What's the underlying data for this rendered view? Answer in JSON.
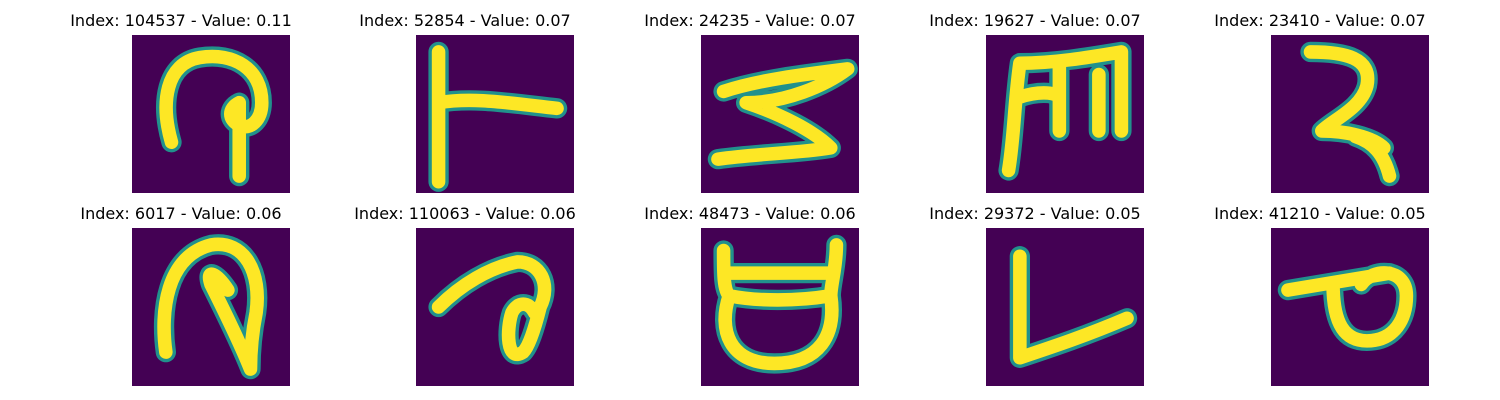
{
  "figure": {
    "background_color": "#440154",
    "stroke_color": "#fde725",
    "edge_color": "#21918c",
    "panels": [
      {
        "title": "Index: 104537 - Value: 0.11",
        "index": 104537,
        "value": 0.11
      },
      {
        "title": "Index: 52854 - Value: 0.07",
        "index": 52854,
        "value": 0.07
      },
      {
        "title": "Index: 24235 - Value: 0.07",
        "index": 24235,
        "value": 0.07
      },
      {
        "title": "Index: 19627 - Value: 0.07",
        "index": 19627,
        "value": 0.07
      },
      {
        "title": "Index: 23410 - Value: 0.07",
        "index": 23410,
        "value": 0.07
      },
      {
        "title": "Index: 6017 - Value: 0.06",
        "index": 6017,
        "value": 0.06
      },
      {
        "title": "Index: 110063 - Value: 0.06",
        "index": 110063,
        "value": 0.06
      },
      {
        "title": "Index: 48473 - Value: 0.06",
        "index": 48473,
        "value": 0.06
      },
      {
        "title": "Index: 29372 - Value: 0.05",
        "index": 29372,
        "value": 0.05
      },
      {
        "title": "Index: 41210 - Value: 0.05",
        "index": 41210,
        "value": 0.05
      }
    ]
  }
}
